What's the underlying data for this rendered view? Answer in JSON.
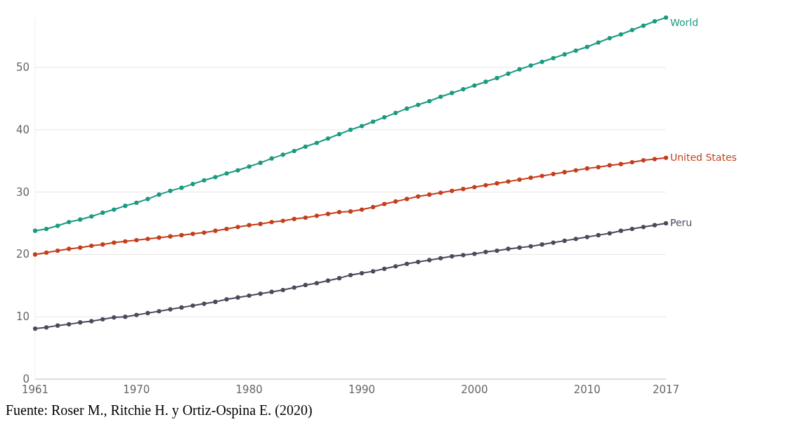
{
  "chart_data": {
    "type": "line",
    "x": [
      1961,
      1962,
      1963,
      1964,
      1965,
      1966,
      1967,
      1968,
      1969,
      1970,
      1971,
      1972,
      1973,
      1974,
      1975,
      1976,
      1977,
      1978,
      1979,
      1980,
      1981,
      1982,
      1983,
      1984,
      1985,
      1986,
      1987,
      1988,
      1989,
      1990,
      1991,
      1992,
      1993,
      1994,
      1995,
      1996,
      1997,
      1998,
      1999,
      2000,
      2001,
      2002,
      2003,
      2004,
      2005,
      2006,
      2007,
      2008,
      2009,
      2010,
      2011,
      2012,
      2013,
      2014,
      2015,
      2016,
      2017
    ],
    "series": [
      {
        "name": "World",
        "color": "#1a9a82",
        "values": [
          23.8,
          24.1,
          24.6,
          25.2,
          25.6,
          26.1,
          26.7,
          27.2,
          27.8,
          28.3,
          28.9,
          29.6,
          30.2,
          30.7,
          31.3,
          31.9,
          32.4,
          33.0,
          33.5,
          34.1,
          34.7,
          35.4,
          36.0,
          36.6,
          37.3,
          37.9,
          38.6,
          39.3,
          40.0,
          40.6,
          41.3,
          42.0,
          42.7,
          43.4,
          44.0,
          44.6,
          45.3,
          45.9,
          46.5,
          47.1,
          47.7,
          48.3,
          49.0,
          49.7,
          50.3,
          50.9,
          51.5,
          52.1,
          52.7,
          53.3,
          54.0,
          54.7,
          55.3,
          56.0,
          56.7,
          57.4,
          58.0
        ]
      },
      {
        "name": "United States",
        "color": "#c43e1c",
        "values": [
          20.0,
          20.3,
          20.6,
          20.9,
          21.1,
          21.4,
          21.6,
          21.9,
          22.1,
          22.3,
          22.5,
          22.7,
          22.9,
          23.1,
          23.3,
          23.5,
          23.8,
          24.1,
          24.4,
          24.7,
          24.9,
          25.2,
          25.4,
          25.7,
          25.9,
          26.2,
          26.5,
          26.8,
          26.9,
          27.2,
          27.6,
          28.1,
          28.5,
          28.9,
          29.3,
          29.6,
          29.9,
          30.2,
          30.5,
          30.8,
          31.1,
          31.4,
          31.7,
          32.0,
          32.3,
          32.6,
          32.9,
          33.2,
          33.5,
          33.8,
          34.0,
          34.3,
          34.5,
          34.8,
          35.1,
          35.3,
          35.5
        ]
      },
      {
        "name": "Peru",
        "color": "#4a4a5c",
        "values": [
          8.1,
          8.3,
          8.6,
          8.8,
          9.1,
          9.3,
          9.6,
          9.9,
          10.0,
          10.3,
          10.6,
          10.9,
          11.2,
          11.5,
          11.8,
          12.1,
          12.4,
          12.8,
          13.1,
          13.4,
          13.7,
          14.0,
          14.3,
          14.7,
          15.1,
          15.4,
          15.8,
          16.2,
          16.7,
          17.0,
          17.3,
          17.7,
          18.1,
          18.5,
          18.8,
          19.1,
          19.4,
          19.7,
          19.9,
          20.1,
          20.4,
          20.6,
          20.9,
          21.1,
          21.3,
          21.6,
          21.9,
          22.2,
          22.5,
          22.8,
          23.1,
          23.4,
          23.8,
          24.1,
          24.4,
          24.7,
          25.0
        ]
      }
    ],
    "xlim": [
      1961,
      2017
    ],
    "xticks": [
      1961,
      1970,
      1980,
      1990,
      2000,
      2010,
      2017
    ],
    "ylim": [
      0,
      58
    ],
    "yticks": [
      0,
      10,
      20,
      30,
      40,
      50
    ],
    "grid": "y",
    "legend": false,
    "marker": "circle",
    "line_style": "solid",
    "annotations": [
      "Fuente: Roser M., Ritchie H. y Ortiz-Ospina E. (2020)"
    ]
  }
}
